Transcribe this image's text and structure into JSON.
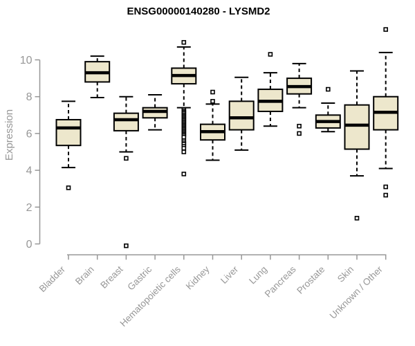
{
  "chart_data": {
    "type": "boxplot",
    "title": "ENSG00000140280 - LYSMD2",
    "xlabel": "",
    "ylabel": "Expression",
    "ylim": [
      0,
      11.7
    ],
    "yticks": [
      0,
      2,
      4,
      6,
      8,
      10
    ],
    "grid": false,
    "legend": false,
    "categories": [
      "Bladder",
      "Brain",
      "Breast",
      "Gastric",
      "Hematopoietic cells",
      "Kidney",
      "Liver",
      "Lung",
      "Pancreas",
      "Prostate",
      "Skin",
      "Unknown / Other"
    ],
    "series": [
      {
        "category": "Bladder",
        "whisker_low": 4.15,
        "q1": 5.35,
        "median": 6.3,
        "q3": 6.75,
        "whisker_high": 7.75,
        "outliers": [
          3.05
        ]
      },
      {
        "category": "Brain",
        "whisker_low": 7.95,
        "q1": 8.8,
        "median": 9.3,
        "q3": 9.9,
        "whisker_high": 10.2,
        "outliers": []
      },
      {
        "category": "Breast",
        "whisker_low": 5.0,
        "q1": 6.15,
        "median": 6.75,
        "q3": 7.1,
        "whisker_high": 8.0,
        "outliers": [
          4.65,
          -0.1
        ]
      },
      {
        "category": "Gastric",
        "whisker_low": 6.2,
        "q1": 6.85,
        "median": 7.2,
        "q3": 7.4,
        "whisker_high": 8.1,
        "outliers": []
      },
      {
        "category": "Hematopoietic cells",
        "whisker_low": 7.4,
        "q1": 8.7,
        "median": 9.15,
        "q3": 9.55,
        "whisker_high": 10.7,
        "outliers": [
          10.95,
          7.3,
          7.22,
          7.15,
          7.08,
          7.0,
          6.93,
          6.86,
          6.79,
          6.72,
          6.65,
          6.58,
          6.51,
          6.44,
          6.37,
          6.3,
          6.23,
          6.16,
          6.09,
          6.02,
          5.95,
          5.88,
          5.8,
          5.6,
          5.5,
          5.42,
          5.3,
          5.2,
          5.0,
          3.8
        ]
      },
      {
        "category": "Kidney",
        "whisker_low": 4.55,
        "q1": 5.65,
        "median": 6.1,
        "q3": 6.5,
        "whisker_high": 7.6,
        "outliers": [
          8.25,
          7.75
        ]
      },
      {
        "category": "Liver",
        "whisker_low": 5.1,
        "q1": 6.2,
        "median": 6.85,
        "q3": 7.75,
        "whisker_high": 9.05,
        "outliers": []
      },
      {
        "category": "Lung",
        "whisker_low": 6.4,
        "q1": 7.2,
        "median": 7.75,
        "q3": 8.4,
        "whisker_high": 9.3,
        "outliers": [
          10.3
        ]
      },
      {
        "category": "Pancreas",
        "whisker_low": 7.4,
        "q1": 8.15,
        "median": 8.55,
        "q3": 9.0,
        "whisker_high": 9.8,
        "outliers": [
          6.4,
          6.0
        ]
      },
      {
        "category": "Prostate",
        "whisker_low": 6.1,
        "q1": 6.3,
        "median": 6.65,
        "q3": 7.0,
        "whisker_high": 7.65,
        "outliers": [
          8.4
        ]
      },
      {
        "category": "Skin",
        "whisker_low": 3.7,
        "q1": 5.15,
        "median": 6.45,
        "q3": 7.55,
        "whisker_high": 9.4,
        "outliers": [
          1.4
        ]
      },
      {
        "category": "Unknown / Other",
        "whisker_low": 4.1,
        "q1": 6.2,
        "median": 7.15,
        "q3": 8.0,
        "whisker_high": 10.4,
        "outliers": [
          11.65,
          3.1,
          2.65
        ]
      }
    ]
  },
  "style": {
    "box_fill": "#EDE7CC",
    "box_border": "#000000",
    "median_color": "#000000",
    "outlier_fill": "#FFFFFF",
    "axis_color": "#979797",
    "text_color": "#979797",
    "title_color": "#000000",
    "background": "#FFFFFF"
  }
}
